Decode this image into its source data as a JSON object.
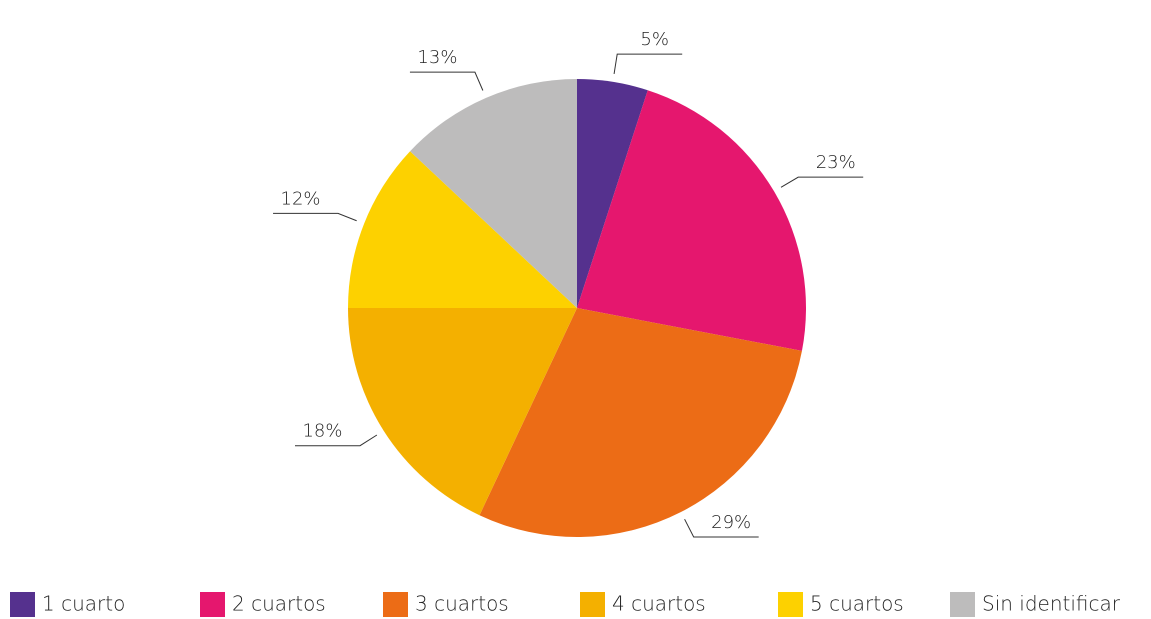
{
  "chart_data": {
    "type": "pie",
    "categories": [
      "1 cuarto",
      "2 cuartos",
      "3 cuartos",
      "4 cuartos",
      "5 cuartos",
      "Sin identificar"
    ],
    "values": [
      5,
      23,
      29,
      18,
      12,
      13
    ],
    "value_labels": [
      "5%",
      "23%",
      "29%",
      "18%",
      "12%",
      "13%"
    ],
    "colors": [
      "#55318e",
      "#e5176e",
      "#ec6c16",
      "#f4b000",
      "#fdd100",
      "#bdbcbc"
    ],
    "legend": "bottom"
  }
}
